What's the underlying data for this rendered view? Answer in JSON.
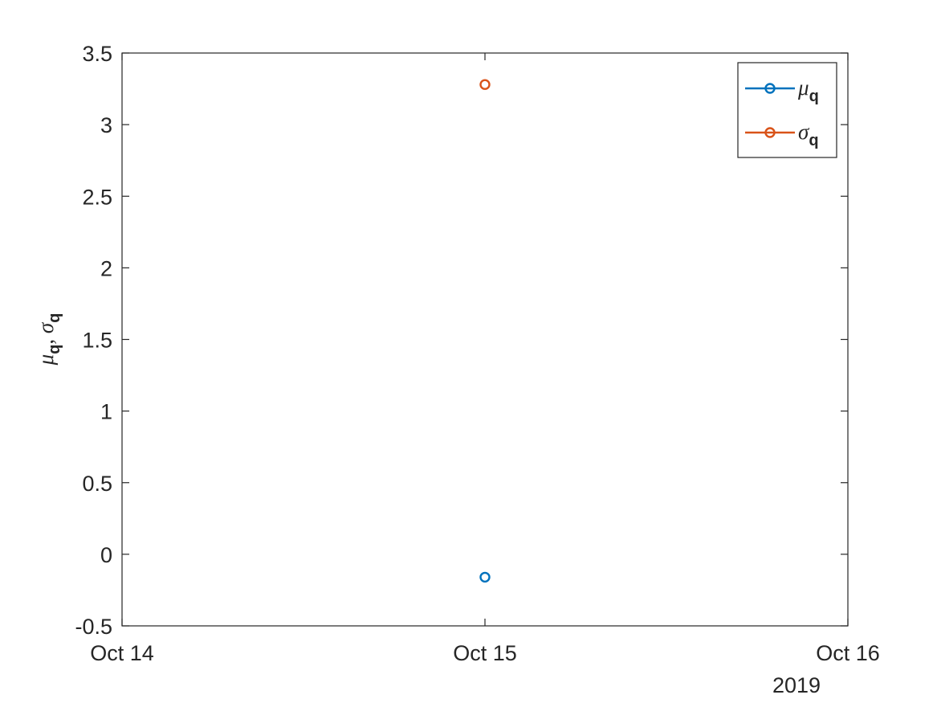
{
  "chart_data": {
    "type": "scatter",
    "x_dates": [
      "2019-10-14",
      "2019-10-15",
      "2019-10-16"
    ],
    "x_tick_labels": [
      "Oct 14",
      "Oct 15",
      "Oct 16"
    ],
    "x_year_label": "2019",
    "xlim": [
      "2019-10-14",
      "2019-10-16"
    ],
    "ylim": [
      -0.5,
      3.5
    ],
    "y_ticks": [
      -0.5,
      0,
      0.5,
      1,
      1.5,
      2,
      2.5,
      3,
      3.5
    ],
    "y_tick_labels": [
      "-0.5",
      "0",
      "0.5",
      "1",
      "1.5",
      "2",
      "2.5",
      "3",
      "3.5"
    ],
    "ylabel": {
      "series1_symbol": "μ",
      "series1_subscript": "q",
      "separator": ", ",
      "series2_symbol": "σ",
      "series2_subscript": "q"
    },
    "grid": false,
    "legend_position": "top-right",
    "series": [
      {
        "name_symbol": "μ",
        "name_subscript": "q",
        "color": "#0072BD",
        "marker": "circle",
        "points": [
          {
            "x": "2019-10-15",
            "y": -0.16
          }
        ]
      },
      {
        "name_symbol": "σ",
        "name_subscript": "q",
        "color": "#D95319",
        "marker": "circle",
        "points": [
          {
            "x": "2019-10-15",
            "y": 3.28
          }
        ]
      }
    ]
  }
}
